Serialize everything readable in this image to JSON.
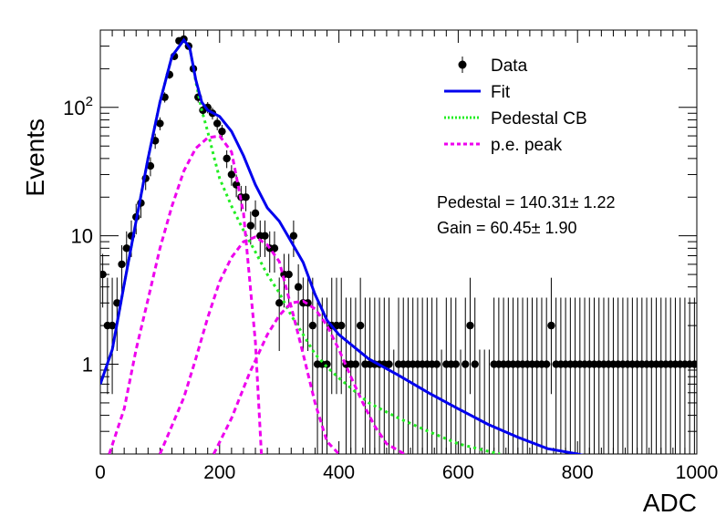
{
  "chart_data": {
    "type": "scatter",
    "xlabel": "ADC",
    "ylabel": "Events",
    "xlim": [
      0,
      1000
    ],
    "ylim": [
      0.2,
      400
    ],
    "yscale": "log",
    "x_ticks": [
      0,
      200,
      400,
      600,
      800,
      1000
    ],
    "y_ticks": [
      {
        "value": 1,
        "label": "1"
      },
      {
        "value": 10,
        "label": "10"
      },
      {
        "value": 100,
        "label_base": "10",
        "label_exp": "2"
      }
    ],
    "grid": false,
    "legend_position": "top-right",
    "legend": [
      {
        "key": "data",
        "label": "Data",
        "color": "#000000",
        "style": "marker"
      },
      {
        "key": "fit",
        "label": "Fit",
        "color": "#0000ee",
        "style": "solid"
      },
      {
        "key": "pedestal",
        "label": "Pedestal CB",
        "color": "#22ee22",
        "style": "dotted"
      },
      {
        "key": "pe",
        "label": "p.e. peak",
        "color": "#ee00ee",
        "style": "dashed"
      }
    ],
    "annotations": [
      {
        "key": "pedestal_text",
        "text": "Pedestal = 140.31± 1.22"
      },
      {
        "key": "gain_text",
        "text": "Gain = 60.45± 1.90"
      }
    ],
    "data": {
      "name": "Data",
      "bin_width": 8,
      "x": [
        4,
        12,
        20,
        28,
        36,
        44,
        52,
        60,
        68,
        76,
        84,
        92,
        100,
        108,
        116,
        124,
        132,
        140,
        148,
        156,
        164,
        172,
        180,
        188,
        196,
        204,
        212,
        220,
        228,
        236,
        244,
        252,
        260,
        268,
        276,
        284,
        292,
        300,
        308,
        316,
        324,
        332,
        340,
        348,
        356,
        364,
        372,
        380,
        388,
        396,
        404,
        412,
        420,
        428,
        436,
        444,
        452,
        460,
        468,
        476,
        484,
        492,
        500,
        508,
        516,
        524,
        532,
        540,
        548,
        556,
        564,
        572,
        580,
        588,
        596,
        604,
        612,
        620,
        628,
        636,
        644,
        652,
        660,
        668,
        676,
        684,
        692,
        700,
        708,
        716,
        724,
        732,
        740,
        748,
        756,
        764,
        772,
        780,
        788,
        796,
        804,
        812,
        820,
        828,
        836,
        844,
        852,
        860,
        868,
        876,
        884,
        892,
        900,
        908,
        916,
        924,
        932,
        940,
        948,
        956,
        964,
        972,
        980,
        988,
        996
      ],
      "y": [
        5,
        2,
        2,
        3,
        6,
        8,
        10,
        14,
        18,
        28,
        35,
        55,
        75,
        120,
        180,
        250,
        330,
        340,
        300,
        200,
        120,
        95,
        100,
        90,
        75,
        65,
        40,
        30,
        25,
        20,
        20,
        12,
        15,
        10,
        10,
        8,
        8,
        3,
        5,
        5,
        10,
        4,
        3,
        3,
        2,
        1,
        1,
        1,
        2,
        2,
        2,
        1,
        1,
        1,
        2,
        1,
        1,
        1,
        1,
        1,
        1,
        0,
        1,
        1,
        1,
        1,
        1,
        1,
        1,
        1,
        1,
        0,
        1,
        1,
        1,
        0,
        1,
        2,
        1,
        0,
        0,
        0,
        1,
        1,
        1,
        1,
        1,
        1,
        1,
        1,
        1,
        1,
        1,
        1,
        2,
        1,
        1,
        1,
        1,
        1,
        1,
        1,
        1,
        1,
        1,
        1,
        1,
        1,
        1,
        1,
        1,
        1,
        1,
        1,
        1,
        1,
        1,
        1,
        1,
        1,
        1,
        1,
        1,
        1,
        1
      ]
    },
    "fit": {
      "name": "Fit",
      "x": [
        0,
        20,
        40,
        60,
        80,
        100,
        120,
        140,
        150,
        160,
        170,
        180,
        200,
        220,
        240,
        260,
        280,
        300,
        320,
        340,
        360,
        380,
        400,
        450,
        500,
        550,
        600,
        650,
        700,
        750,
        800,
        820
      ],
      "y": [
        0.7,
        1.3,
        4.2,
        13,
        40,
        110,
        250,
        335,
        290,
        165,
        110,
        95,
        85,
        65,
        42,
        25,
        16.5,
        13,
        9,
        6.2,
        3.5,
        2.2,
        1.7,
        1.1,
        0.82,
        0.6,
        0.45,
        0.34,
        0.27,
        0.22,
        0.2,
        0.19
      ]
    },
    "pedestal": {
      "name": "Pedestal CB",
      "x": [
        0,
        20,
        40,
        60,
        80,
        100,
        120,
        140,
        150,
        160,
        170,
        180,
        190,
        200,
        220,
        240,
        260,
        280,
        300,
        320,
        340,
        360,
        380,
        400,
        450,
        500,
        550,
        600,
        650,
        670
      ],
      "y": [
        0.7,
        1.3,
        4.2,
        13,
        40,
        110,
        250,
        335,
        290,
        160,
        95,
        65,
        42,
        28,
        17,
        11,
        7.5,
        5,
        3.6,
        2.4,
        1.7,
        1.2,
        0.95,
        0.78,
        0.5,
        0.38,
        0.3,
        0.24,
        0.21,
        0.2
      ]
    },
    "pe_peaks": [
      {
        "name": "p.e. peak",
        "x": [
          15,
          40,
          60,
          80,
          100,
          120,
          140,
          160,
          180,
          200,
          220,
          240,
          260,
          270
        ],
        "y": [
          0.2,
          0.45,
          1.3,
          3.2,
          8,
          17,
          32,
          48,
          58,
          60,
          45,
          15,
          1.5,
          0.2
        ]
      },
      {
        "name": "p.e. peak",
        "x": [
          100,
          140,
          160,
          180,
          200,
          220,
          240,
          260,
          280,
          300,
          320,
          340,
          360,
          380,
          400
        ],
        "y": [
          0.2,
          0.55,
          1.1,
          2.3,
          4.4,
          6.8,
          9,
          9.8,
          8.5,
          6.3,
          2.8,
          1.2,
          0.5,
          0.25,
          0.2
        ]
      },
      {
        "name": "p.e. peak",
        "x": [
          190,
          220,
          250,
          280,
          300,
          320,
          340,
          360,
          380,
          400,
          420,
          440,
          460,
          480,
          510
        ],
        "y": [
          0.2,
          0.38,
          0.85,
          1.7,
          2.4,
          3,
          3.1,
          2.7,
          2,
          1.3,
          0.8,
          0.5,
          0.33,
          0.24,
          0.2
        ]
      }
    ]
  }
}
